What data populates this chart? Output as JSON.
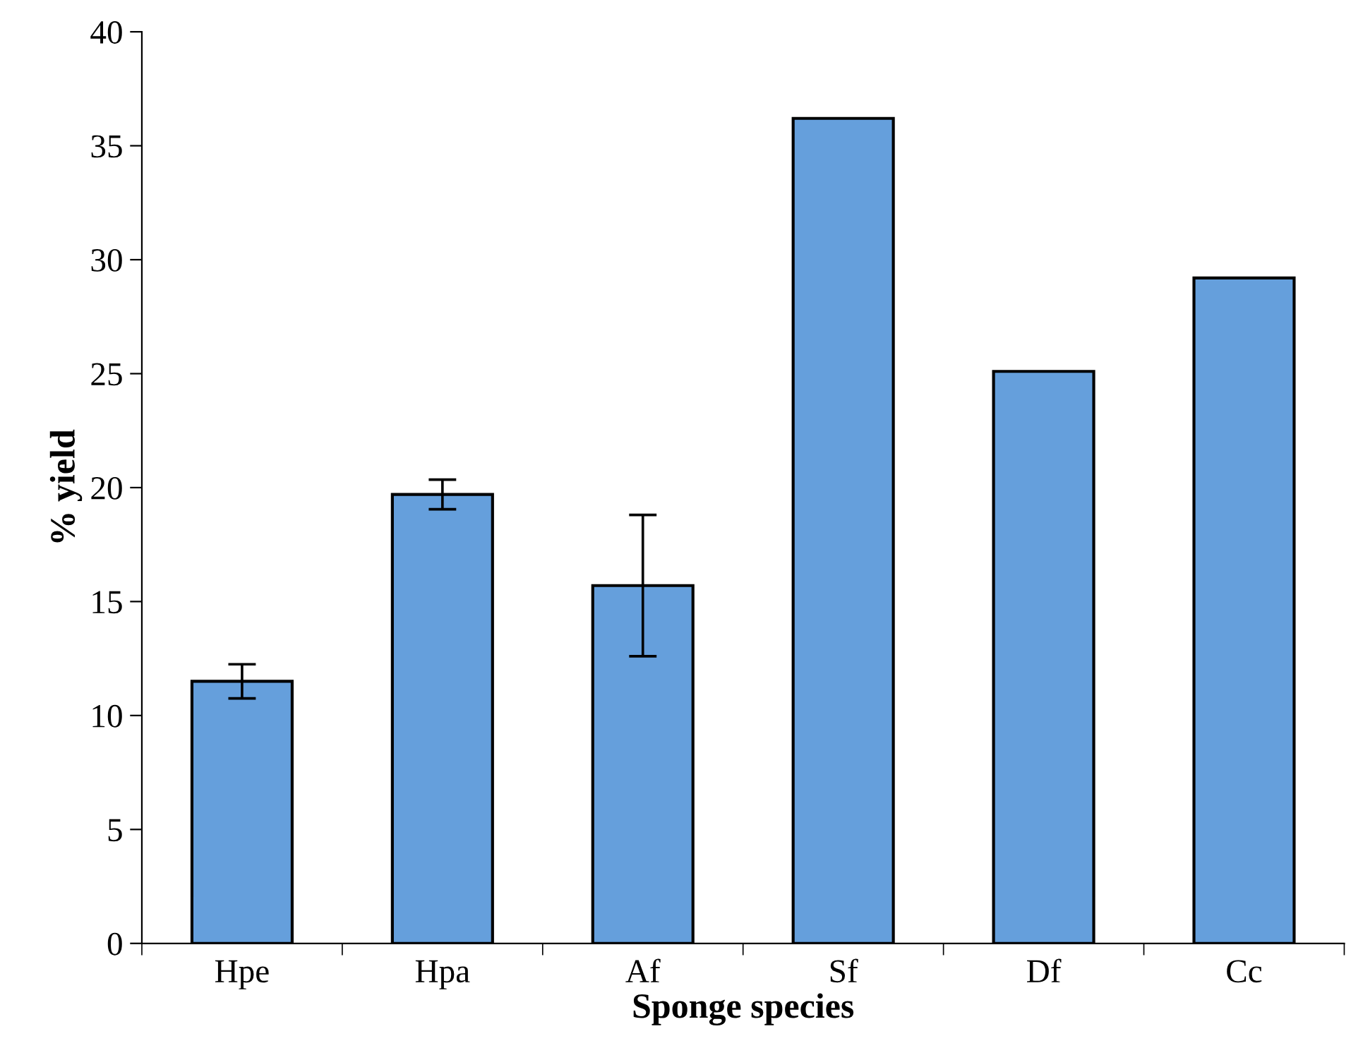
{
  "chart_data": {
    "type": "bar",
    "xlabel": "Sponge species",
    "ylabel": "% yield",
    "categories": [
      "Hpe",
      "Hpa",
      "Af",
      "Sf",
      "Df",
      "Cc"
    ],
    "values": [
      11.5,
      19.7,
      15.7,
      36.2,
      25.1,
      29.2
    ],
    "errors": [
      0.75,
      0.65,
      3.1,
      null,
      null,
      null
    ],
    "color": "#659fdc",
    "ylim": [
      0,
      40
    ],
    "yticks": [
      0,
      5,
      10,
      15,
      20,
      25,
      30,
      35,
      40
    ],
    "grid": false,
    "legend": false
  }
}
